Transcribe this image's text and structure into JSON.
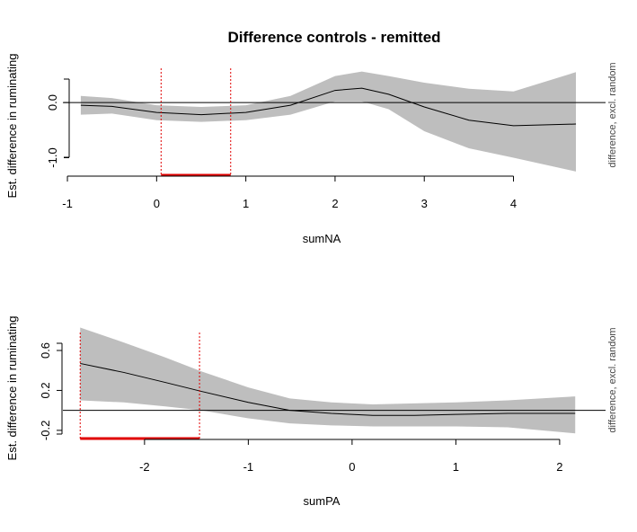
{
  "chart_data": [
    {
      "type": "line",
      "title": "Difference controls - remitted",
      "xlabel": "sumNA",
      "ylabel": "Est. difference in ruminating",
      "side_label": "difference, excl. random",
      "xlim": [
        -0.95,
        4.75
      ],
      "ylim": [
        -1.35,
        0.62
      ],
      "xticks": [
        "-1",
        "0",
        "1",
        "2",
        "3",
        "4"
      ],
      "yticks": [
        "-1.0",
        "0.0"
      ],
      "ytick_values": [
        -1.0,
        0.0
      ],
      "xtick_values": [
        -1,
        0,
        1,
        2,
        3,
        4
      ],
      "x": [
        -0.85,
        -0.5,
        0.0,
        0.5,
        1.0,
        1.5,
        2.0,
        2.3,
        2.6,
        3.0,
        3.5,
        4.0,
        4.7
      ],
      "y": [
        -0.05,
        -0.07,
        -0.18,
        -0.22,
        -0.18,
        -0.05,
        0.22,
        0.26,
        0.15,
        -0.08,
        -0.32,
        -0.42,
        -0.39
      ],
      "lower": [
        -0.22,
        -0.2,
        -0.32,
        -0.35,
        -0.32,
        -0.22,
        0.02,
        0.02,
        -0.12,
        -0.52,
        -0.83,
        -1.0,
        -1.25
      ],
      "upper": [
        0.12,
        0.08,
        -0.05,
        -0.08,
        -0.05,
        0.12,
        0.48,
        0.56,
        0.48,
        0.36,
        0.25,
        0.2,
        0.55
      ],
      "reference_line": 0,
      "significant_region": [
        0.05,
        0.83
      ]
    },
    {
      "type": "line",
      "title": "",
      "xlabel": "sumPA",
      "ylabel": "Est. difference in ruminating",
      "side_label": "difference, excl. random",
      "xlim": [
        -2.7,
        2.2
      ],
      "ylim": [
        -0.3,
        0.78
      ],
      "xticks": [
        "-2",
        "-1",
        "0",
        "1",
        "2"
      ],
      "yticks": [
        "-0.2",
        "0.2",
        "0.6"
      ],
      "ytick_values": [
        -0.2,
        0.2,
        0.6
      ],
      "xtick_values": [
        -2,
        -1,
        0,
        1,
        2
      ],
      "x": [
        -2.62,
        -2.2,
        -1.8,
        -1.45,
        -1.0,
        -0.6,
        -0.2,
        0.2,
        0.6,
        1.0,
        1.5,
        2.15
      ],
      "y": [
        0.47,
        0.38,
        0.28,
        0.19,
        0.08,
        0.0,
        -0.03,
        -0.05,
        -0.05,
        -0.04,
        -0.03,
        -0.03
      ],
      "lower": [
        0.1,
        0.08,
        0.04,
        0.0,
        -0.08,
        -0.13,
        -0.15,
        -0.16,
        -0.16,
        -0.16,
        -0.17,
        -0.23
      ],
      "upper": [
        0.83,
        0.68,
        0.53,
        0.39,
        0.23,
        0.12,
        0.08,
        0.06,
        0.07,
        0.08,
        0.1,
        0.14
      ],
      "reference_line": 0,
      "significant_region": [
        -2.62,
        -1.47
      ]
    }
  ]
}
